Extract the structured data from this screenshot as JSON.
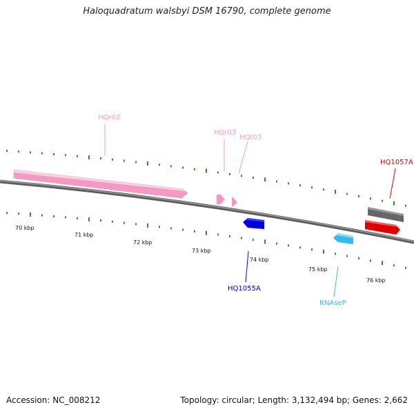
{
  "header": {
    "title": "Haloquadratum walsbyi DSM 16790, complete genome"
  },
  "footer": {
    "accession": "Accession: NC_008212",
    "summary": "Topology: circular; Length: 3,132,494 bp; Genes: 2,662"
  },
  "scale": {
    "tick_labels": [
      "70 kbp",
      "71 kbp",
      "72 kbp",
      "73 kbp",
      "74 kbp",
      "75 kbp",
      "76 kbp"
    ]
  },
  "colors": {
    "backbone": "#777777",
    "tick": "#2e8b2e",
    "rRNA": "#f49ac2",
    "cds_forward": "#e00000",
    "cds_reverse": "#0000dd",
    "misc_rna": "#33bbee",
    "other": "#666666"
  },
  "features": [
    {
      "label": "HQr02",
      "color": "#f49ac2"
    },
    {
      "label": "HQr03",
      "color": "#f49ac2"
    },
    {
      "label": "HQt03",
      "color": "#f49ac2"
    },
    {
      "label": "HQ1057A",
      "color": "#e00000"
    },
    {
      "label": "HQ1055A",
      "color": "#0000dd"
    },
    {
      "label": "RNAseP",
      "color": "#33bbee"
    }
  ]
}
